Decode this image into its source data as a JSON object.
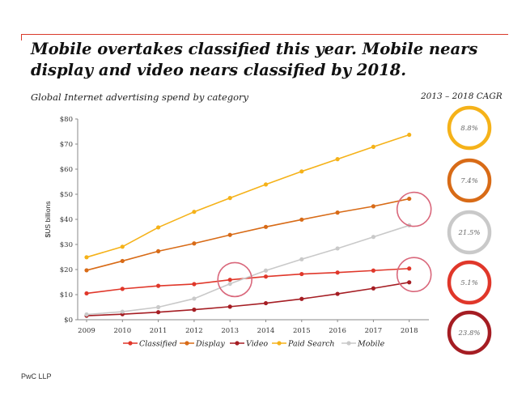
{
  "headline": "Mobile overtakes classified this year. Mobile nears display and video nears classified by 2018.",
  "subtitle": "Global Internet advertising spend by category",
  "footer": "PwC LLP",
  "cagr": {
    "title": "2013 – 2018 CAGR",
    "items": [
      {
        "series": "Paid Search",
        "value": "8.8%",
        "color": "#f5b219"
      },
      {
        "series": "Display",
        "value": "7.4%",
        "color": "#d86b17"
      },
      {
        "series": "Mobile",
        "value": "21.5%",
        "color": "#c9c9c9"
      },
      {
        "series": "Classified",
        "value": "5.1%",
        "color": "#e0372a"
      },
      {
        "series": "Video",
        "value": "23.8%",
        "color": "#a51d23"
      }
    ]
  },
  "highlight_color": "#d9677b",
  "chart_data": {
    "type": "line",
    "x": [
      "2009",
      "2010",
      "2011",
      "2012",
      "2013",
      "2014",
      "2015",
      "2016",
      "2017",
      "2018"
    ],
    "ylabel": "$US billions",
    "xlabel": "",
    "ylim": [
      0,
      80
    ],
    "yticks": [
      "$0",
      "$10",
      "$20",
      "$30",
      "$40",
      "$50",
      "$60",
      "$70",
      "$80"
    ],
    "grid": false,
    "legend_position": "bottom",
    "series": [
      {
        "name": "Classified",
        "color": "#e0372a",
        "values": [
          10.5,
          12.3,
          13.5,
          14.2,
          15.9,
          17.2,
          18.2,
          18.8,
          19.6,
          20.4
        ]
      },
      {
        "name": "Display",
        "color": "#d86b17",
        "values": [
          19.7,
          23.4,
          27.3,
          30.4,
          33.8,
          37.0,
          39.9,
          42.7,
          45.2,
          48.2
        ]
      },
      {
        "name": "Video",
        "color": "#a51d23",
        "values": [
          1.6,
          2.2,
          3.0,
          4.0,
          5.2,
          6.6,
          8.3,
          10.3,
          12.5,
          14.9
        ]
      },
      {
        "name": "Paid Search",
        "color": "#f5b219",
        "values": [
          24.9,
          29.1,
          36.8,
          43.0,
          48.5,
          53.9,
          59.1,
          64.0,
          68.9,
          73.7
        ]
      },
      {
        "name": "Mobile",
        "color": "#c9c9c9",
        "values": [
          2.1,
          3.2,
          5.0,
          8.4,
          14.3,
          19.6,
          24.1,
          28.4,
          33.0,
          37.6
        ]
      }
    ],
    "highlights": [
      {
        "x": "2013",
        "y": 16
      },
      {
        "x": "2018",
        "y": 44
      },
      {
        "x": "2018",
        "y": 18
      }
    ]
  }
}
